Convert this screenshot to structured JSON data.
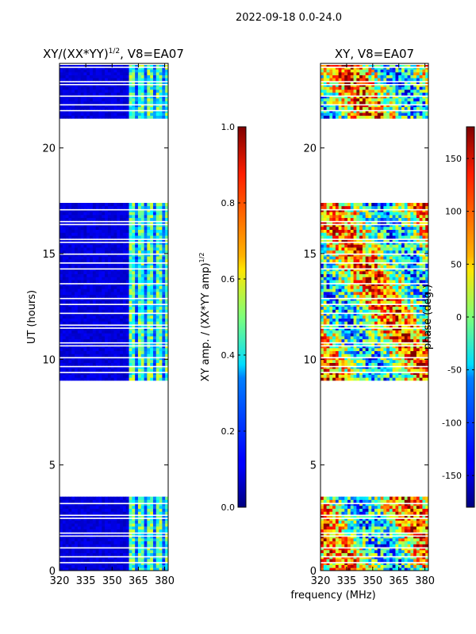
{
  "figure_title": "2022-09-18 0.0-24.0",
  "xlabel_shared": "frequency (MHz)",
  "colormap": "jet",
  "chart_data": [
    {
      "type": "heatmap",
      "title": "XY/(XX*YY)^1/2, V8=EA07",
      "title_main": "XY/(XX*YY)",
      "title_sup": "1/2",
      "title_tail": ", V8=EA07",
      "xlabel": "",
      "ylabel": "UT (hours)",
      "xlim": [
        320,
        382
      ],
      "ylim": [
        0,
        24
      ],
      "xticks": [
        320,
        335,
        350,
        365,
        380
      ],
      "yticks": [
        0,
        5,
        10,
        15,
        20
      ],
      "data_blocks_ut_hours": [
        [
          0,
          3.5
        ],
        [
          9.0,
          17.4
        ],
        [
          21.4,
          24
        ]
      ],
      "high_amp_band_mhz": [
        359,
        381
      ],
      "colorbar": {
        "label": "XY amp. / (XX*YY amp)^1/2",
        "label_main": "XY amp. / (XX*YY amp)",
        "label_sup": "1/2",
        "range": [
          0,
          1
        ],
        "ticks": [
          "0.0",
          "0.2",
          "0.4",
          "0.6",
          "0.8",
          "1.0"
        ]
      }
    },
    {
      "type": "heatmap",
      "title": "XY, V8=EA07",
      "xlabel": "frequency (MHz)",
      "ylabel": "",
      "xlim": [
        320,
        382
      ],
      "ylim": [
        0,
        24
      ],
      "xticks": [
        320,
        335,
        350,
        365,
        380
      ],
      "yticks": [
        0,
        5,
        10,
        15,
        20
      ],
      "data_blocks_ut_hours": [
        [
          0,
          3.5
        ],
        [
          9.0,
          17.4
        ],
        [
          21.4,
          24
        ]
      ],
      "colorbar": {
        "label": "phase (deg.)",
        "range": [
          -180,
          180
        ],
        "ticks": [
          "-150",
          "-100",
          "-50",
          "0",
          "50",
          "100",
          "150"
        ]
      }
    }
  ]
}
